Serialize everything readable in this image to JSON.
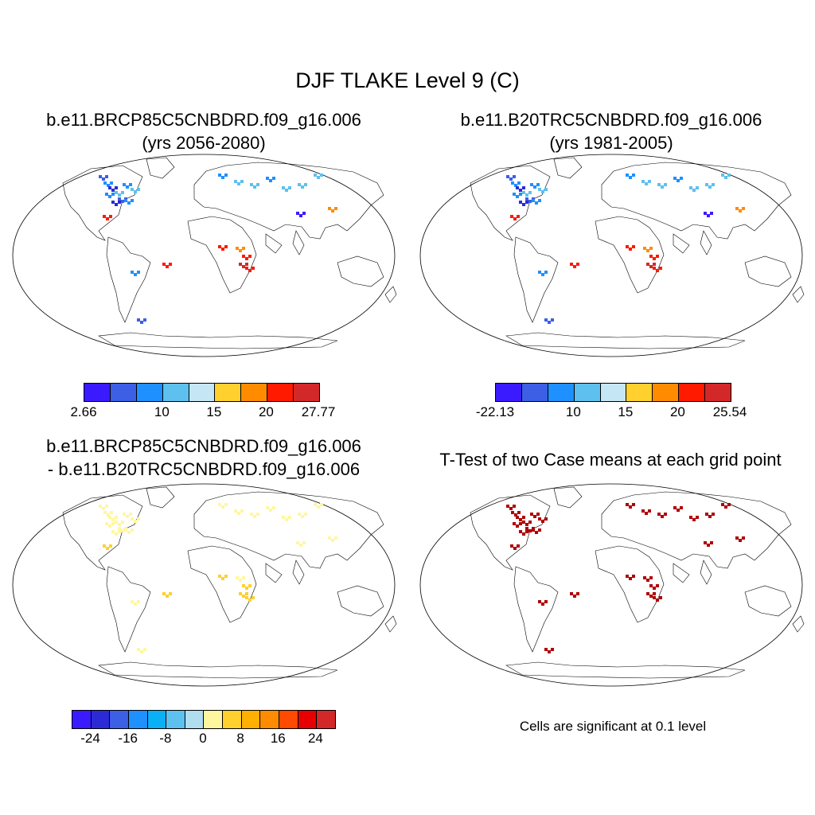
{
  "figure": {
    "title": "DJF TLAKE Level 9 (C)"
  },
  "panels": [
    {
      "title_line1": "b.e11.BRCP85C5CNBDRD.f09_g16.006",
      "title_line2": "(yrs 2056-2080)"
    },
    {
      "title_line1": "b.e11.B20TRC5CNBDRD.f09_g16.006",
      "title_line2": "(yrs 1981-2005)"
    },
    {
      "title_line1": "b.e11.BRCP85C5CNBDRD.f09_g16.006",
      "title_line2": "- b.e11.B20TRC5CNBDRD.f09_g16.006"
    },
    {
      "title_line1": "T-Test of two Case means at each grid point"
    }
  ],
  "colorbars": {
    "top_left": {
      "colors": [
        "#3a1bff",
        "#3c5fe5",
        "#1e90ff",
        "#5ec0ee",
        "#c5e6f5",
        "#ffd02e",
        "#ff8c00",
        "#ff1a00",
        "#d2282a"
      ],
      "labels": [
        "2.66",
        "10",
        "15",
        "20",
        "27.77"
      ],
      "label_positions": [
        0,
        3,
        5,
        7,
        9
      ]
    },
    "top_right": {
      "colors": [
        "#3a1bff",
        "#3c5fe5",
        "#1e90ff",
        "#5ec0ee",
        "#c5e6f5",
        "#ffd02e",
        "#ff8c00",
        "#ff1a00",
        "#d2282a"
      ],
      "labels": [
        "-22.13",
        "10",
        "15",
        "20",
        "25.54"
      ],
      "label_positions": [
        0,
        3,
        5,
        7,
        9
      ]
    },
    "bottom_left": {
      "colors": [
        "#3a1bff",
        "#2b2bd6",
        "#3c5fe5",
        "#1e90ff",
        "#0ab0f5",
        "#5ec0ee",
        "#b0ddf0",
        "#fff7a0",
        "#ffd02e",
        "#ffb000",
        "#ff8c00",
        "#ff4a00",
        "#e60000",
        "#d2282a"
      ],
      "labels": [
        "-24",
        "-16",
        "-8",
        "0",
        "8",
        "16",
        "24"
      ],
      "label_positions": [
        1,
        3,
        5,
        7,
        9,
        11,
        13
      ]
    }
  },
  "ttest_note": "Cells are significant at 0.1 level"
}
